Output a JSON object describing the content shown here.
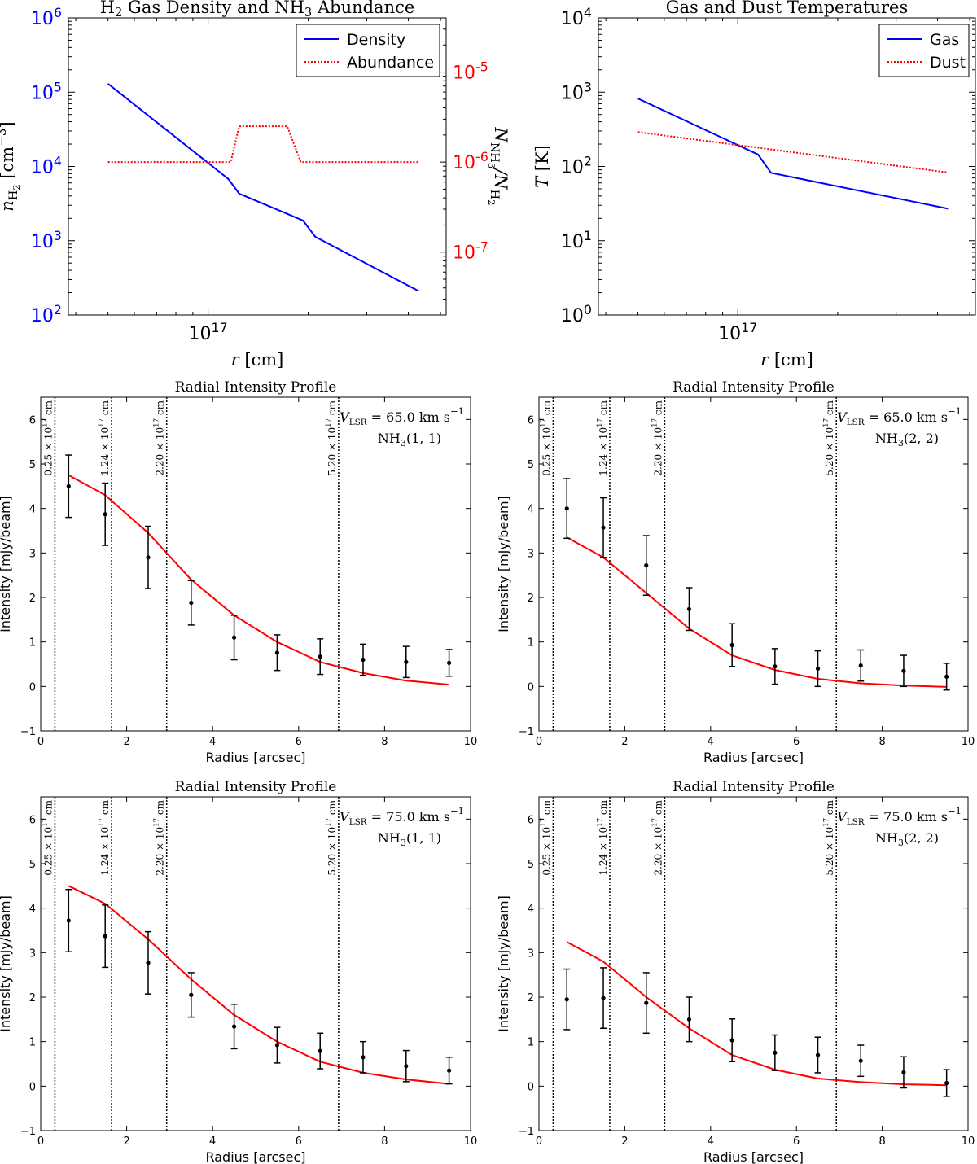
{
  "chart_data": [
    {
      "id": "density",
      "type": "line",
      "title_parts": [
        "H",
        "2",
        " Gas Density and NH",
        "3",
        " Abundance"
      ],
      "xscale": "log",
      "xlim": [
        38000000000000000,
        520000000000000000
      ],
      "x_ticks": [
        {
          "value": 100000000000000000,
          "base": "10",
          "exp": "17"
        }
      ],
      "xlabel_parts": [
        "r",
        " [cm]"
      ],
      "yscale": "log",
      "ylim": [
        100,
        1000000
      ],
      "y_ticks": [
        {
          "value": 100,
          "base": "10",
          "exp": "2"
        },
        {
          "value": 1000,
          "base": "10",
          "exp": "3"
        },
        {
          "value": 10000,
          "base": "10",
          "exp": "4"
        },
        {
          "value": 100000,
          "base": "10",
          "exp": "5"
        },
        {
          "value": 1000000,
          "base": "10",
          "exp": "6"
        }
      ],
      "ylabel_parts": [
        "n",
        "H",
        "2",
        " [cm",
        "−3",
        "]"
      ],
      "y2scale": "log",
      "y2lim": [
        2e-08,
        4e-05
      ],
      "y2_ticks": [
        {
          "value": 1e-07,
          "base": "10",
          "exp": "-7"
        },
        {
          "value": 1e-06,
          "base": "10",
          "exp": "-6"
        },
        {
          "value": 1e-05,
          "base": "10",
          "exp": "-5"
        }
      ],
      "y2label_parts": [
        "N",
        "NH",
        "3",
        "/N",
        "H",
        "2"
      ],
      "left_axis_color": "#0000ff",
      "right_axis_color": "#ff0000",
      "legend": {
        "position": "top-right",
        "entries": [
          "Density",
          "Abundance"
        ]
      },
      "series": [
        {
          "name": "Density",
          "axis": "left",
          "style": "solid",
          "color": "#0000ff",
          "x": [
            50000000000000000,
            115000000000000000,
            124000000000000000,
            193000000000000000,
            210000000000000000,
            430000000000000000
          ],
          "y": [
            130000,
            6800,
            4300,
            1870,
            1130,
            210
          ]
        },
        {
          "name": "Abundance",
          "axis": "right",
          "style": "dotted",
          "color": "#ff0000",
          "x": [
            50000000000000000,
            117000000000000000,
            124000000000000000,
            173000000000000000,
            190000000000000000,
            430000000000000000
          ],
          "y": [
            1e-06,
            1e-06,
            2.5e-06,
            2.5e-06,
            1e-06,
            1e-06
          ]
        }
      ]
    },
    {
      "id": "temperature",
      "type": "line",
      "title_parts": [
        "Gas and Dust Temperatures"
      ],
      "xscale": "log",
      "xlim": [
        38000000000000000,
        520000000000000000
      ],
      "x_ticks": [
        {
          "value": 100000000000000000,
          "base": "10",
          "exp": "17"
        }
      ],
      "xlabel_parts": [
        "r",
        " [cm]"
      ],
      "yscale": "log",
      "ylim": [
        1,
        10000
      ],
      "y_ticks": [
        {
          "value": 1,
          "base": "10",
          "exp": "0"
        },
        {
          "value": 10,
          "base": "10",
          "exp": "1"
        },
        {
          "value": 100,
          "base": "10",
          "exp": "2"
        },
        {
          "value": 1000,
          "base": "10",
          "exp": "3"
        },
        {
          "value": 10000,
          "base": "10",
          "exp": "4"
        }
      ],
      "ylabel_parts": [
        "T",
        " [K]"
      ],
      "legend": {
        "position": "top-right",
        "entries": [
          "Gas",
          "Dust"
        ]
      },
      "series": [
        {
          "name": "Gas",
          "style": "solid",
          "color": "#0000ff",
          "x": [
            50000000000000000,
            115000000000000000,
            126000000000000000,
            430000000000000000
          ],
          "y": [
            820,
            145,
            82,
            27
          ]
        },
        {
          "name": "Dust",
          "style": "dotted",
          "color": "#ff0000",
          "x": [
            50000000000000000,
            430000000000000000
          ],
          "y": [
            290,
            83
          ]
        }
      ]
    },
    {
      "id": "profile-65-11",
      "type": "line",
      "title": "Radial Intensity Profile",
      "xlabel": "Radius [arcsec]",
      "ylabel": "Intensity [mJy/beam]",
      "xlim": [
        0,
        10
      ],
      "ylim": [
        -1,
        6.5
      ],
      "x_ticks": [
        "0",
        "2",
        "4",
        "6",
        "8",
        "10"
      ],
      "y_ticks": [
        "−1",
        "0",
        "1",
        "2",
        "3",
        "4",
        "5",
        "6"
      ],
      "vlines": [
        {
          "x": 0.33,
          "mant": "0.25",
          "exp": "17"
        },
        {
          "x": 1.65,
          "mant": "1.24",
          "exp": "17"
        },
        {
          "x": 2.93,
          "mant": "2.20",
          "exp": "17"
        },
        {
          "x": 6.93,
          "mant": "5.20",
          "exp": "17"
        }
      ],
      "annotation": {
        "vlsr": "65.0",
        "line": "(1, 1)"
      },
      "model": {
        "name": "model",
        "color": "#ff0000",
        "x": [
          0.65,
          1.5,
          2.5,
          3.5,
          4.5,
          5.5,
          6.5,
          7.5,
          8.5,
          9.5
        ],
        "y": [
          4.75,
          4.3,
          3.45,
          2.4,
          1.6,
          1.0,
          0.55,
          0.3,
          0.13,
          0.04
        ]
      },
      "observed": {
        "name": "observed",
        "color": "#000000",
        "x": [
          0.65,
          1.5,
          2.5,
          3.5,
          4.5,
          5.5,
          6.5,
          7.5,
          8.5,
          9.5
        ],
        "y": [
          4.5,
          3.87,
          2.9,
          1.88,
          1.1,
          0.76,
          0.67,
          0.6,
          0.55,
          0.53
        ],
        "err": [
          0.7,
          0.7,
          0.7,
          0.5,
          0.5,
          0.4,
          0.4,
          0.35,
          0.35,
          0.3
        ]
      }
    },
    {
      "id": "profile-65-22",
      "type": "line",
      "title": "Radial Intensity Profile",
      "xlabel": "Radius [arcsec]",
      "ylabel": "Intensity [mJy/beam]",
      "xlim": [
        0,
        10
      ],
      "ylim": [
        -1,
        6.5
      ],
      "x_ticks": [
        "0",
        "2",
        "4",
        "6",
        "8",
        "10"
      ],
      "y_ticks": [
        "−1",
        "0",
        "1",
        "2",
        "3",
        "4",
        "5",
        "6"
      ],
      "vlines": [
        {
          "x": 0.33,
          "mant": "0.25",
          "exp": "17"
        },
        {
          "x": 1.65,
          "mant": "1.24",
          "exp": "17"
        },
        {
          "x": 2.93,
          "mant": "2.20",
          "exp": "17"
        },
        {
          "x": 6.93,
          "mant": "5.20",
          "exp": "17"
        }
      ],
      "annotation": {
        "vlsr": "65.0",
        "line": "(2, 2)"
      },
      "model": {
        "name": "model",
        "color": "#ff0000",
        "x": [
          0.65,
          1.5,
          2.5,
          3.5,
          4.5,
          5.5,
          6.5,
          7.5,
          8.5,
          9.5
        ],
        "y": [
          3.35,
          2.9,
          2.1,
          1.3,
          0.7,
          0.37,
          0.17,
          0.07,
          0.02,
          -0.01
        ]
      },
      "observed": {
        "name": "observed",
        "color": "#000000",
        "x": [
          0.65,
          1.5,
          2.5,
          3.5,
          4.5,
          5.5,
          6.5,
          7.5,
          8.5,
          9.5
        ],
        "y": [
          4.0,
          3.57,
          2.72,
          1.74,
          0.93,
          0.45,
          0.4,
          0.47,
          0.35,
          0.22
        ],
        "err": [
          0.67,
          0.67,
          0.67,
          0.48,
          0.48,
          0.4,
          0.4,
          0.35,
          0.35,
          0.3
        ]
      }
    },
    {
      "id": "profile-75-11",
      "type": "line",
      "title": "Radial Intensity Profile",
      "xlabel": "Radius [arcsec]",
      "ylabel": "Intensity [mJy/beam]",
      "xlim": [
        0,
        10
      ],
      "ylim": [
        -1,
        6.5
      ],
      "x_ticks": [
        "0",
        "2",
        "4",
        "6",
        "8",
        "10"
      ],
      "y_ticks": [
        "−1",
        "0",
        "1",
        "2",
        "3",
        "4",
        "5",
        "6"
      ],
      "vlines": [
        {
          "x": 0.33,
          "mant": "0.25",
          "exp": "17"
        },
        {
          "x": 1.65,
          "mant": "1.24",
          "exp": "17"
        },
        {
          "x": 2.93,
          "mant": "2.20",
          "exp": "17"
        },
        {
          "x": 6.93,
          "mant": "5.20",
          "exp": "17"
        }
      ],
      "annotation": {
        "vlsr": "75.0",
        "line": "(1, 1)"
      },
      "model": {
        "name": "model",
        "color": "#ff0000",
        "x": [
          0.65,
          1.5,
          2.5,
          3.5,
          4.5,
          5.5,
          6.5,
          7.5,
          8.5,
          9.5
        ],
        "y": [
          4.5,
          4.1,
          3.3,
          2.4,
          1.6,
          1.0,
          0.55,
          0.3,
          0.15,
          0.05
        ]
      },
      "observed": {
        "name": "observed",
        "color": "#000000",
        "x": [
          0.65,
          1.5,
          2.5,
          3.5,
          4.5,
          5.5,
          6.5,
          7.5,
          8.5,
          9.5
        ],
        "y": [
          3.72,
          3.37,
          2.77,
          2.05,
          1.34,
          0.92,
          0.79,
          0.65,
          0.45,
          0.35
        ],
        "err": [
          0.7,
          0.7,
          0.7,
          0.5,
          0.5,
          0.4,
          0.4,
          0.35,
          0.35,
          0.3
        ]
      }
    },
    {
      "id": "profile-75-22",
      "type": "line",
      "title": "Radial Intensity Profile",
      "xlabel": "Radius [arcsec]",
      "ylabel": "Intensity [mJy/beam]",
      "xlim": [
        0,
        10
      ],
      "ylim": [
        -1,
        6.5
      ],
      "x_ticks": [
        "0",
        "2",
        "4",
        "6",
        "8",
        "10"
      ],
      "y_ticks": [
        "−1",
        "0",
        "1",
        "2",
        "3",
        "4",
        "5",
        "6"
      ],
      "vlines": [
        {
          "x": 0.33,
          "mant": "0.25",
          "exp": "17"
        },
        {
          "x": 1.65,
          "mant": "1.24",
          "exp": "17"
        },
        {
          "x": 2.93,
          "mant": "2.20",
          "exp": "17"
        },
        {
          "x": 6.93,
          "mant": "5.20",
          "exp": "17"
        }
      ],
      "annotation": {
        "vlsr": "75.0",
        "line": "(2, 2)"
      },
      "model": {
        "name": "model",
        "color": "#ff0000",
        "x": [
          0.65,
          1.5,
          2.5,
          3.5,
          4.5,
          5.5,
          6.5,
          7.5,
          8.5,
          9.5
        ],
        "y": [
          3.24,
          2.8,
          2.0,
          1.3,
          0.7,
          0.37,
          0.17,
          0.09,
          0.04,
          0.02
        ]
      },
      "observed": {
        "name": "observed",
        "color": "#000000",
        "x": [
          0.65,
          1.5,
          2.5,
          3.5,
          4.5,
          5.5,
          6.5,
          7.5,
          8.5,
          9.5
        ],
        "y": [
          1.95,
          1.98,
          1.87,
          1.5,
          1.03,
          0.75,
          0.7,
          0.57,
          0.31,
          0.07
        ],
        "err": [
          0.68,
          0.68,
          0.68,
          0.5,
          0.48,
          0.4,
          0.4,
          0.35,
          0.35,
          0.3
        ]
      }
    }
  ],
  "annotation_text": {
    "vlsr_prefix": "V",
    "vlsr_sub": "LSR",
    "vlsr_eq": " = ",
    "vlsr_unit": " km s",
    "vlsr_unit_exp": "−1",
    "line_species": "NH",
    "line_sub": "3",
    "vline_times": " × 10",
    "vline_unit": " cm"
  }
}
